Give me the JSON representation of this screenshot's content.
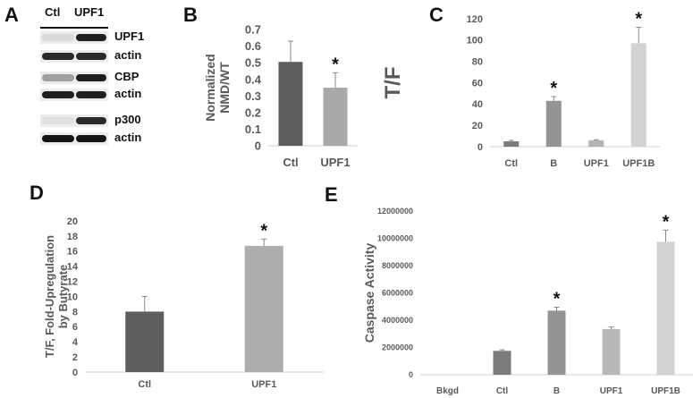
{
  "panels": {
    "a": "A",
    "b": "B",
    "c": "C",
    "d": "D",
    "e": "E"
  },
  "blot": {
    "lanes": [
      "Ctl",
      "UPF1"
    ],
    "rows": [
      {
        "label": "UPF1",
        "intensity": [
          0.08,
          0.95
        ]
      },
      {
        "label": "actin",
        "intensity": [
          0.9,
          0.9
        ]
      },
      {
        "label": "CBP",
        "intensity": [
          0.35,
          0.95
        ]
      },
      {
        "label": "actin",
        "intensity": [
          0.95,
          0.95
        ]
      },
      {
        "label": "p300",
        "intensity": [
          0.05,
          0.9
        ]
      },
      {
        "label": "actin",
        "intensity": [
          1.0,
          1.0
        ]
      }
    ]
  },
  "chart_data": [
    {
      "id": "B",
      "type": "bar",
      "title": "",
      "ylabel": "Normalized NMD/WT",
      "xlabel": "",
      "categories": [
        "Ctl",
        "UPF1"
      ],
      "values": [
        0.505,
        0.35
      ],
      "errors": [
        0.125,
        0.09
      ],
      "significant": [
        false,
        true
      ],
      "ylim": [
        0,
        0.7
      ],
      "yticks": [
        "0",
        "0.1",
        "0.2",
        "0.3",
        "0.4",
        "0.5",
        "0.6",
        "0.7"
      ],
      "colors": [
        "#5d5d5d",
        "#a9a9a9"
      ],
      "grid": false,
      "legend": "none"
    },
    {
      "id": "C",
      "type": "bar",
      "title": "",
      "ylabel": "T/F",
      "xlabel": "",
      "categories": [
        "Ctl",
        "B",
        "UPF1",
        "UPF1B"
      ],
      "values": [
        5,
        43,
        6,
        97
      ],
      "errors": [
        1,
        4,
        0.5,
        15
      ],
      "significant": [
        false,
        true,
        false,
        true
      ],
      "ylim": [
        0,
        120
      ],
      "yticks": [
        "0",
        "20",
        "40",
        "60",
        "80",
        "100",
        "120"
      ],
      "colors": [
        "#7b7b7b",
        "#949494",
        "#b3b3b3",
        "#d2d2d2"
      ],
      "grid": false,
      "legend": "none"
    },
    {
      "id": "D",
      "type": "bar",
      "title": "",
      "ylabel": "T/F, Fold-Upregulation by Butyrate",
      "xlabel": "",
      "categories": [
        "Ctl",
        "UPF1"
      ],
      "values": [
        8,
        16.7
      ],
      "errors": [
        2,
        0.9
      ],
      "significant": [
        false,
        true
      ],
      "ylim": [
        0,
        20
      ],
      "yticks": [
        "0",
        "2",
        "4",
        "6",
        "8",
        "10",
        "12",
        "14",
        "16",
        "18",
        "20"
      ],
      "colors": [
        "#5d5d5d",
        "#adadad"
      ],
      "grid": false,
      "legend": "none"
    },
    {
      "id": "E",
      "type": "bar",
      "title": "",
      "ylabel": "Caspase Activity",
      "xlabel": "",
      "categories": [
        "Bkgd",
        "Ctl",
        "B",
        "UPF1",
        "UPF1B"
      ],
      "values": [
        0,
        1750000,
        4700000,
        3350000,
        9750000
      ],
      "errors": [
        0,
        80000,
        250000,
        150000,
        850000
      ],
      "significant": [
        false,
        false,
        true,
        false,
        true
      ],
      "ylim": [
        0,
        12000000
      ],
      "yticks": [
        "0",
        "2000000",
        "4000000",
        "6000000",
        "8000000",
        "10000000",
        "12000000"
      ],
      "colors": [
        "#7b7b7b",
        "#7b7b7b",
        "#949494",
        "#b8b8b8",
        "#d2d2d2"
      ],
      "grid": false,
      "legend": "none"
    }
  ],
  "significance_mark": "*"
}
